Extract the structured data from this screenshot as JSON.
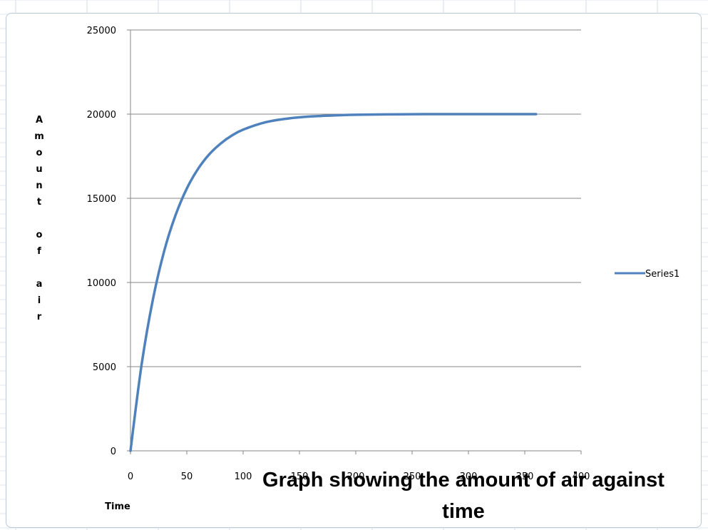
{
  "chart_data": {
    "type": "line",
    "title_lines": [
      "Graph showing  the amount   of air against",
      "time"
    ],
    "xlabel": "Time",
    "ylabel": "Amount of air",
    "ylabel_chars": [
      "A",
      "m",
      "o",
      "u",
      "n",
      "t",
      "",
      "o",
      "f",
      "",
      "a",
      "i",
      "r"
    ],
    "xlim": [
      0,
      400
    ],
    "ylim": [
      0,
      25000
    ],
    "x_ticks": [
      0,
      50,
      100,
      150,
      200,
      250,
      300,
      350,
      400
    ],
    "y_ticks": [
      0,
      5000,
      10000,
      15000,
      20000,
      25000
    ],
    "grid": "horizontal",
    "legend_position": "right",
    "series": [
      {
        "name": "Series1",
        "color": "#4f81bd",
        "x": [
          0,
          10,
          20,
          30,
          40,
          50,
          60,
          70,
          80,
          90,
          100,
          120,
          140,
          160,
          180,
          200,
          240,
          280,
          320,
          360
        ],
        "y": [
          0,
          5180,
          9020,
          11890,
          14000,
          15580,
          16750,
          17620,
          18250,
          18730,
          19080,
          19520,
          19740,
          19860,
          19920,
          19960,
          19990,
          20000,
          20000,
          20000
        ]
      }
    ]
  }
}
